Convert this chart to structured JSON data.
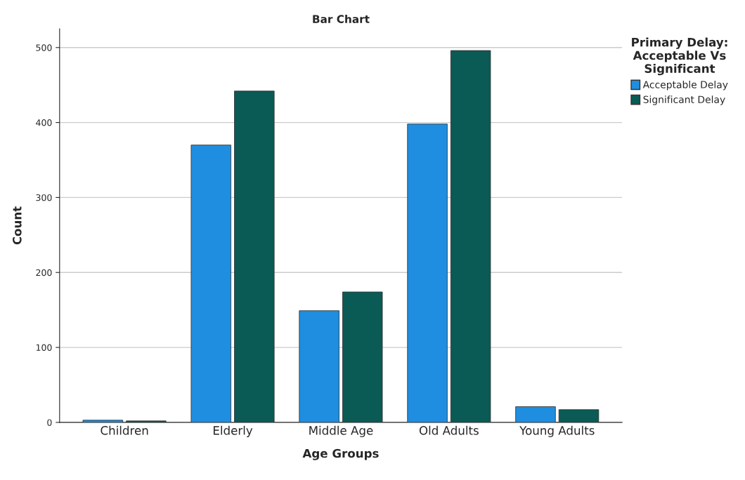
{
  "chart_data": {
    "type": "bar",
    "title": "Bar Chart",
    "xlabel": "Age Groups",
    "ylabel": "Count",
    "legend_title": "Primary Delay:\nAcceptable Vs\nSignificant",
    "categories": [
      "Children",
      "Elderly",
      "Middle Age",
      "Old Adults",
      "Young Adults"
    ],
    "series": [
      {
        "name": "Acceptable Delay",
        "color": "#1f8ee0",
        "values": [
          3,
          370,
          149,
          398,
          21
        ]
      },
      {
        "name": "Significant Delay",
        "color": "#0a5a55",
        "values": [
          2,
          442,
          174,
          496,
          17
        ]
      }
    ],
    "ylim": [
      0,
      525
    ],
    "yticks": [
      0,
      100,
      200,
      300,
      400,
      500
    ],
    "grid": "y",
    "legend": "top right"
  }
}
